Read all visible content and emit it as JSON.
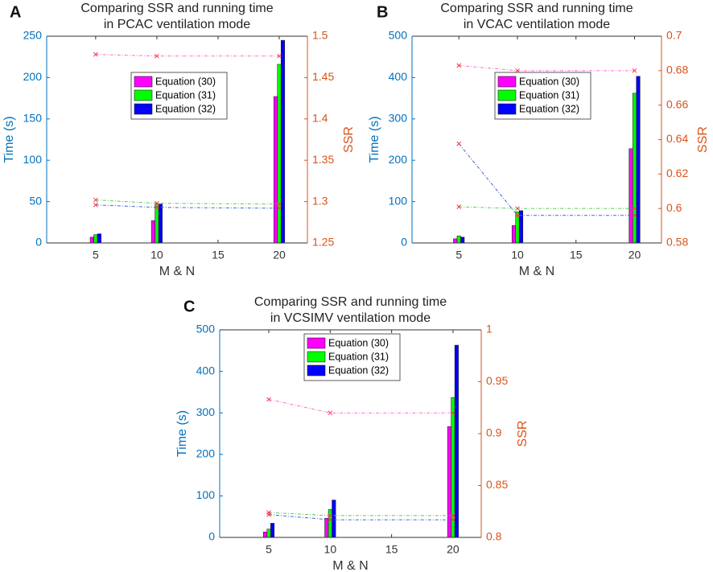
{
  "chart_data": [
    {
      "type": "bar_line",
      "panel": "A",
      "title": [
        "Comparing SSR and running time",
        "in PCAC ventilation mode"
      ],
      "xlabel": "M & N",
      "ylabel": "Time (s)",
      "y2label": "SSR",
      "x": [
        5,
        10,
        20
      ],
      "xlim": [
        1,
        22.3
      ],
      "xticks": [
        5,
        10,
        15,
        20
      ],
      "ylim": [
        0,
        250
      ],
      "yticks": [
        0,
        50,
        100,
        150,
        200,
        250
      ],
      "y2lim": [
        1.25,
        1.5
      ],
      "y2ticks": [
        1.25,
        1.3,
        1.35,
        1.4,
        1.45,
        1.5
      ],
      "series": [
        {
          "name": "Equation (30)",
          "color": "#ff00ff",
          "values": [
            7,
            27,
            177
          ]
        },
        {
          "name": "Equation (31)",
          "color": "#00ff00",
          "values": [
            10,
            47,
            216
          ]
        },
        {
          "name": "Equation (32)",
          "color": "#0000ff",
          "values": [
            11,
            47,
            245
          ]
        },
        {
          "color": "#ff6ec7",
          "axis": "y2",
          "values": [
            1.478,
            1.476,
            1.476
          ]
        },
        {
          "color": "#55cc55",
          "axis": "y2",
          "values": [
            1.302,
            1.298,
            1.297
          ]
        },
        {
          "color": "#4466cc",
          "axis": "y2",
          "values": [
            1.296,
            1.293,
            1.292
          ]
        }
      ]
    },
    {
      "type": "bar_line",
      "panel": "B",
      "title": [
        "Comparing SSR and running time",
        "in VCAC ventilation mode"
      ],
      "xlabel": "M & N",
      "ylabel": "Time (s)",
      "y2label": "SSR",
      "x": [
        5,
        10,
        20
      ],
      "xlim": [
        1,
        22.3
      ],
      "xticks": [
        5,
        10,
        15,
        20
      ],
      "ylim": [
        0,
        500
      ],
      "yticks": [
        0,
        100,
        200,
        300,
        400,
        500
      ],
      "y2lim": [
        0.58,
        0.7
      ],
      "y2ticks": [
        0.58,
        0.6,
        0.62,
        0.64,
        0.66,
        0.68,
        0.7
      ],
      "series": [
        {
          "name": "Equation (30)",
          "color": "#ff00ff",
          "values": [
            10,
            42,
            228
          ]
        },
        {
          "name": "Equation (31)",
          "color": "#00ff00",
          "values": [
            17,
            75,
            362
          ]
        },
        {
          "name": "Equation (32)",
          "color": "#0000ff",
          "values": [
            14,
            78,
            403
          ]
        },
        {
          "color": "#ff6ec7",
          "axis": "y2",
          "values": [
            0.683,
            0.68,
            0.68
          ]
        },
        {
          "color": "#55cc55",
          "axis": "y2",
          "values": [
            0.601,
            0.6,
            0.6
          ]
        },
        {
          "color": "#4466cc",
          "axis": "y2",
          "values": [
            0.6376,
            0.596,
            0.596
          ]
        }
      ]
    },
    {
      "type": "bar_line",
      "panel": "C",
      "title": [
        "Comparing SSR and running time",
        "in VCSIMV ventilation mode"
      ],
      "xlabel": "M & N",
      "ylabel": "Time (s)",
      "y2label": "SSR",
      "x": [
        5,
        10,
        20
      ],
      "xlim": [
        1,
        22.3
      ],
      "xticks": [
        5,
        10,
        15,
        20
      ],
      "ylim": [
        0,
        500
      ],
      "yticks": [
        0,
        100,
        200,
        300,
        400,
        500
      ],
      "y2lim": [
        0.8,
        1
      ],
      "y2ticks": [
        0.8,
        0.85,
        0.9,
        0.95,
        1
      ],
      "series": [
        {
          "name": "Equation (30)",
          "color": "#ff00ff",
          "values": [
            13,
            46,
            267
          ]
        },
        {
          "name": "Equation (31)",
          "color": "#00ff00",
          "values": [
            20,
            67,
            337
          ]
        },
        {
          "name": "Equation (32)",
          "color": "#0000ff",
          "values": [
            34,
            90,
            463
          ]
        },
        {
          "color": "#ff6ec7",
          "axis": "y2",
          "values": [
            0.933,
            0.92,
            0.92
          ]
        },
        {
          "color": "#55cc55",
          "axis": "y2",
          "values": [
            0.824,
            0.821,
            0.821
          ]
        },
        {
          "color": "#4466cc",
          "axis": "y2",
          "values": [
            0.822,
            0.817,
            0.817
          ]
        }
      ]
    }
  ]
}
